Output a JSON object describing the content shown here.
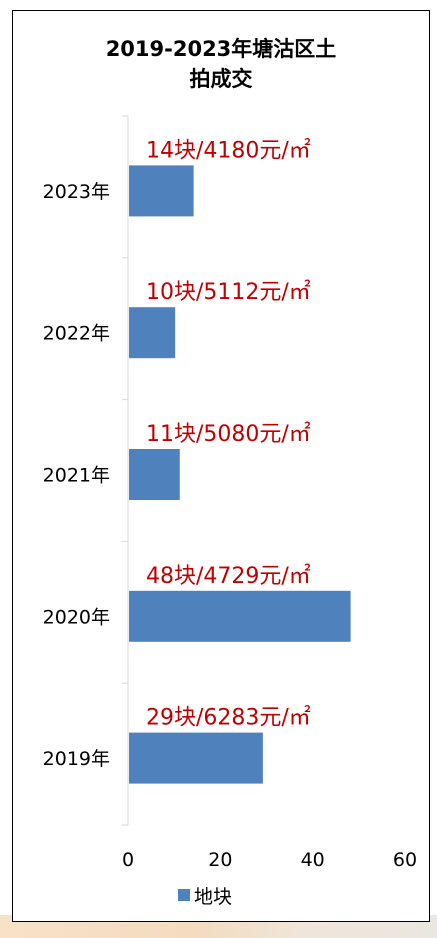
{
  "chart_data": {
    "type": "bar",
    "orientation": "horizontal",
    "title": "2019-2023年塘沽区土拍成交",
    "title_lines": [
      "2019-2023年塘沽区土",
      "拍成交"
    ],
    "categories": [
      "2023年",
      "2022年",
      "2021年",
      "2020年",
      "2019年"
    ],
    "series": [
      {
        "name": "地块",
        "values": [
          14,
          10,
          11,
          48,
          29
        ]
      }
    ],
    "data_labels": [
      "14块/4180元/㎡",
      "10块/5112元/㎡",
      "11块/5080元/㎡",
      "48块/4729元/㎡",
      "29块/6283元/㎡"
    ],
    "xlim": [
      0,
      60
    ],
    "x_ticks": [
      "0",
      "20",
      "40",
      "60"
    ],
    "grid": false,
    "legend_position": "bottom",
    "colors": {
      "bar": "#4f81bd",
      "data_label": "#c00000",
      "axis": "#d9d9d9",
      "text": "#000000"
    }
  }
}
